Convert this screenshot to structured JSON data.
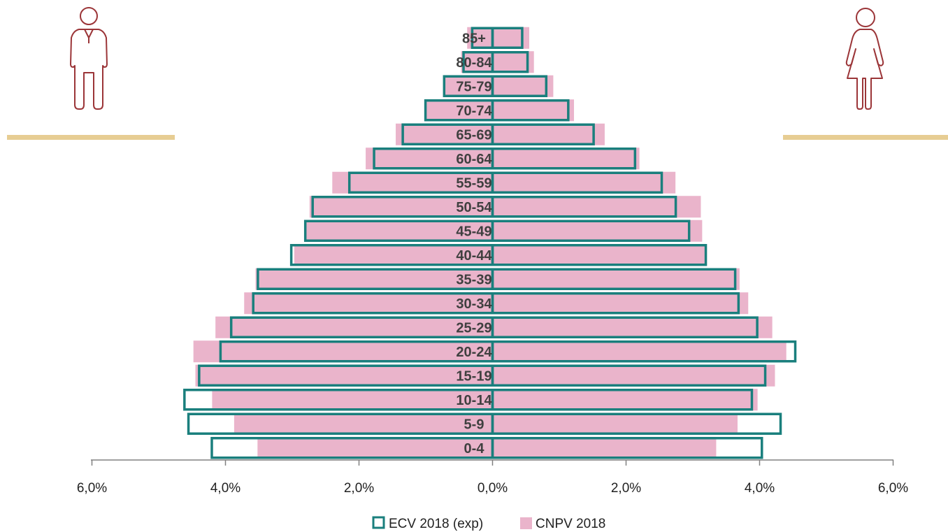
{
  "chart_data": {
    "type": "bar",
    "subtype": "population-pyramid",
    "orientation": "horizontal",
    "categories": [
      "0-4",
      "5-9",
      "10-14",
      "15-19",
      "20-24",
      "25-29",
      "30-34",
      "35-39",
      "40-44",
      "45-49",
      "50-54",
      "55-59",
      "60-64",
      "65-69",
      "70-74",
      "75-79",
      "80-84",
      "85+"
    ],
    "series": [
      {
        "name": "ECV 2018 (exp)",
        "style": "outline",
        "color": "#1a7f7d",
        "left": [
          4.22,
          4.57,
          4.63,
          4.41,
          4.09,
          3.93,
          3.6,
          3.53,
          3.03,
          2.82,
          2.71,
          2.16,
          1.79,
          1.36,
          1.02,
          0.74,
          0.45,
          0.32
        ],
        "right": [
          4.05,
          4.33,
          3.9,
          4.1,
          4.55,
          3.98,
          3.7,
          3.65,
          3.21,
          2.96,
          2.76,
          2.55,
          2.15,
          1.53,
          1.15,
          0.82,
          0.54,
          0.46
        ]
      },
      {
        "name": "CNPV 2018",
        "style": "filled",
        "color": "#eab4cb",
        "left": [
          3.52,
          3.87,
          4.2,
          4.45,
          4.48,
          4.15,
          3.72,
          3.55,
          2.97,
          2.8,
          2.74,
          2.4,
          1.9,
          1.45,
          1.0,
          0.72,
          0.47,
          0.38
        ],
        "right": [
          3.35,
          3.67,
          3.97,
          4.23,
          4.4,
          4.19,
          3.83,
          3.7,
          3.21,
          3.14,
          3.12,
          2.74,
          2.2,
          1.68,
          1.22,
          0.91,
          0.62,
          0.55
        ]
      }
    ],
    "x_ticks": [
      "6,0%",
      "4,0%",
      "2,0%",
      "0,0%",
      "2,0%",
      "4,0%",
      "6,0%"
    ],
    "xlim": [
      -6,
      6
    ],
    "grid": false,
    "legend_position": "bottom",
    "icons": {
      "left": "male-figure-icon",
      "right": "female-figure-icon",
      "icon_color": "#9b3538",
      "divider_color": "#e7cd93"
    }
  }
}
